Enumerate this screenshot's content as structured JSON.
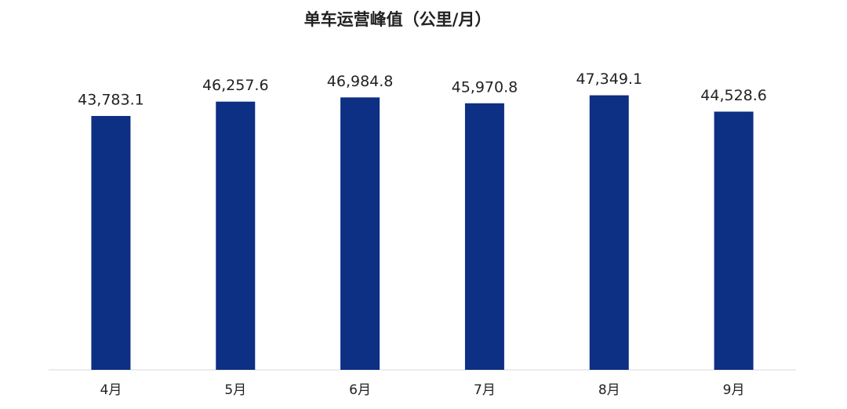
{
  "chart_data": {
    "type": "bar",
    "title": "单车运营峰值（公里/月）",
    "categories": [
      "4月",
      "5月",
      "6月",
      "7月",
      "8月",
      "9月"
    ],
    "values": [
      43783.1,
      46257.6,
      46984.8,
      45970.8,
      47349.1,
      44528.6
    ],
    "value_labels": [
      "43,783.1",
      "46,257.6",
      "46,984.8",
      "45,970.8",
      "47,349.1",
      "44,528.6"
    ],
    "color": "#0d2f84",
    "ylim": [
      0,
      50000
    ]
  }
}
